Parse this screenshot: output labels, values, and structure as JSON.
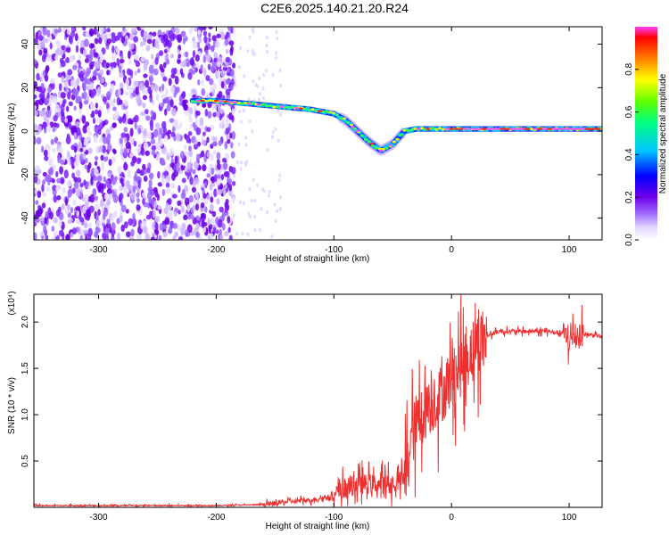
{
  "figure_title": "C2E6.2025.140.21.20.R24",
  "chart_data": [
    {
      "type": "heatmap",
      "name": "spectrogram",
      "title": "",
      "xlabel": "Height of straight line (km)",
      "ylabel": "Frequency (Hz)",
      "xlim": [
        -355,
        128
      ],
      "ylim": [
        -50,
        48
      ],
      "xticks": [
        -300,
        -200,
        -100,
        0,
        100
      ],
      "yticks": [
        -40,
        -20,
        0,
        20,
        40
      ],
      "colorbar": {
        "label": "Normalized spectral amplitude",
        "range": [
          0,
          1
        ],
        "ticks": [
          "0.0",
          "0.2",
          "0.4",
          "0.6",
          "0.8"
        ],
        "colors": [
          "#ffffff",
          "#e3d6ff",
          "#a070ff",
          "#7000e8",
          "#0000ff",
          "#00c8ff",
          "#00ff80",
          "#60ff00",
          "#ffff00",
          "#ff8000",
          "#ff0000",
          "#ff40ff"
        ]
      },
      "noise_region_x": [
        -355,
        -185
      ],
      "signal_track": [
        {
          "x": -220,
          "y": 14
        },
        {
          "x": -200,
          "y": 14
        },
        {
          "x": -180,
          "y": 13
        },
        {
          "x": -160,
          "y": 12
        },
        {
          "x": -140,
          "y": 11
        },
        {
          "x": -120,
          "y": 10
        },
        {
          "x": -100,
          "y": 8
        },
        {
          "x": -90,
          "y": 5
        },
        {
          "x": -80,
          "y": 0
        },
        {
          "x": -70,
          "y": -5
        },
        {
          "x": -60,
          "y": -9
        },
        {
          "x": -50,
          "y": -6
        },
        {
          "x": -40,
          "y": 0
        },
        {
          "x": -30,
          "y": 1
        },
        {
          "x": -10,
          "y": 1
        },
        {
          "x": 10,
          "y": 1
        },
        {
          "x": 40,
          "y": 1
        },
        {
          "x": 80,
          "y": 1
        },
        {
          "x": 100,
          "y": 1
        },
        {
          "x": 128,
          "y": 1
        }
      ]
    },
    {
      "type": "line",
      "name": "snr",
      "title": "",
      "xlabel": "Height of straight line (km)",
      "ylabel": "SNR (10 * v/v)",
      "y_multiplier": "(x10⁴)",
      "xlim": [
        -355,
        128
      ],
      "ylim": [
        0,
        2.3
      ],
      "xticks": [
        -300,
        -200,
        -100,
        0,
        100
      ],
      "yticks": [
        0.5,
        1.0,
        1.5,
        2.0
      ],
      "color": "#ee3030",
      "series": [
        {
          "values_x": [
            -355,
            -300,
            -250,
            -200,
            -160,
            -140,
            -120,
            -100,
            -90,
            -80,
            -70,
            -60,
            -50,
            -40,
            -35,
            -30,
            -25,
            -20,
            -10,
            0,
            10,
            20,
            30,
            40,
            60,
            80,
            95,
            100,
            105,
            110,
            120,
            128
          ],
          "values_y": [
            0.02,
            0.02,
            0.02,
            0.02,
            0.03,
            0.06,
            0.08,
            0.12,
            0.2,
            0.25,
            0.25,
            0.25,
            0.25,
            0.3,
            0.7,
            0.9,
            1.0,
            1.1,
            1.2,
            1.4,
            1.55,
            1.75,
            1.85,
            1.9,
            1.9,
            1.9,
            1.88,
            1.8,
            1.85,
            1.87,
            1.86,
            1.84
          ]
        }
      ]
    }
  ]
}
